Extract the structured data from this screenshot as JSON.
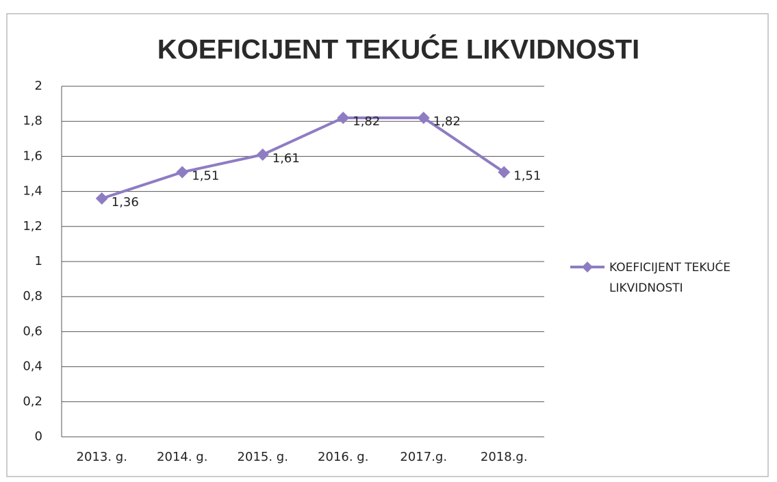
{
  "chart_data": {
    "type": "line",
    "title": "KOEFICIJENT TEKUĆE LIKVIDNOSTI",
    "categories": [
      "2013. g.",
      "2014. g.",
      "2015. g.",
      "2016. g.",
      "2017.g.",
      "2018.g."
    ],
    "series": [
      {
        "name": "KOEFICIJENT TEKUĆE LIKVIDNOSTI",
        "color": "#8e7cc3",
        "values": [
          1.36,
          1.51,
          1.61,
          1.82,
          1.82,
          1.51
        ],
        "value_labels": [
          "1,36",
          "1,51",
          "1,61",
          "1,82",
          "1,82",
          "1,51"
        ]
      }
    ],
    "ylim": [
      0,
      2
    ],
    "yticks": [
      0,
      {
        "value": 0.2,
        "label": "0,2"
      },
      {
        "value": 0.4,
        "label": "0,4"
      },
      {
        "value": 0.6,
        "label": "0,6"
      },
      {
        "value": 0.8,
        "label": "0,8"
      },
      1,
      {
        "value": 1.2,
        "label": "1,2"
      },
      {
        "value": 1.4,
        "label": "1,4"
      },
      {
        "value": 1.6,
        "label": "1,6"
      },
      {
        "value": 1.8,
        "label": "1,8"
      },
      2
    ],
    "grid": true,
    "legend": "right"
  }
}
